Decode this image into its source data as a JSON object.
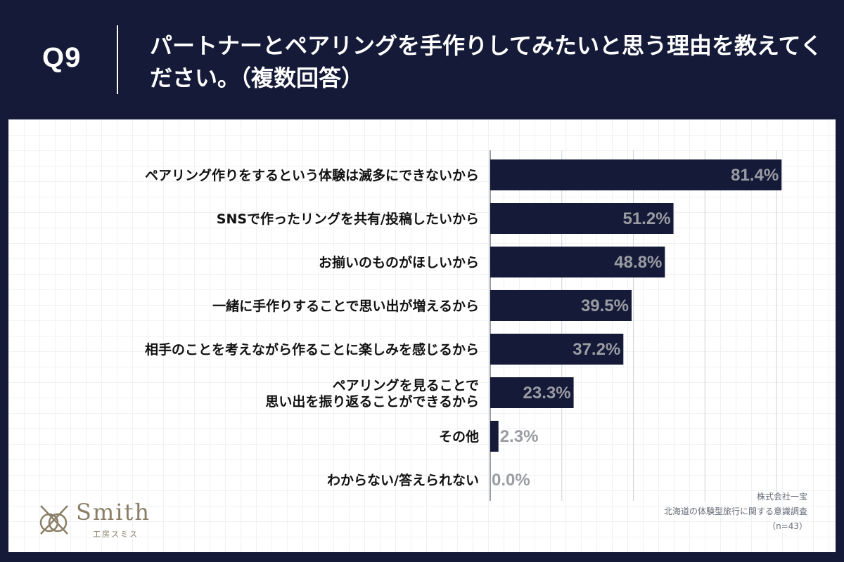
{
  "header": {
    "question_number": "Q9",
    "question_text": "パートナーとペアリングを手作りしてみたいと思う理由を教えてください。（複数回答）"
  },
  "chart_data": {
    "type": "bar",
    "orientation": "horizontal",
    "categories": [
      "ペアリング作りをするという体験は滅多にできないから",
      "SNSで作ったリングを共有/投稿したいから",
      "お揃いのものがほしいから",
      "一緒に手作りすることで思い出が増えるから",
      "相手のことを考えながら作ることに楽しみを感じるから",
      "ペアリングを見ることで\n思い出を振り返ることができるから",
      "その他",
      "わからない/答えられない"
    ],
    "values": [
      81.4,
      51.2,
      48.8,
      39.5,
      37.2,
      23.3,
      2.3,
      0.0
    ],
    "value_labels": [
      "81.4%",
      "51.2%",
      "48.8%",
      "39.5%",
      "37.2%",
      "23.3%",
      "2.3%",
      "0.0%"
    ],
    "xlim": [
      0,
      90
    ],
    "bar_color": "#141a37",
    "label_color": "#9a9ca3",
    "grid": true
  },
  "footer": {
    "company": "株式会社一宝",
    "survey": "北海道の体験型旅行に関する意識調査",
    "sample": "（n=43）"
  },
  "logo": {
    "word": "Smith",
    "sub": "工房スミス",
    "color": "#8a7f66"
  }
}
